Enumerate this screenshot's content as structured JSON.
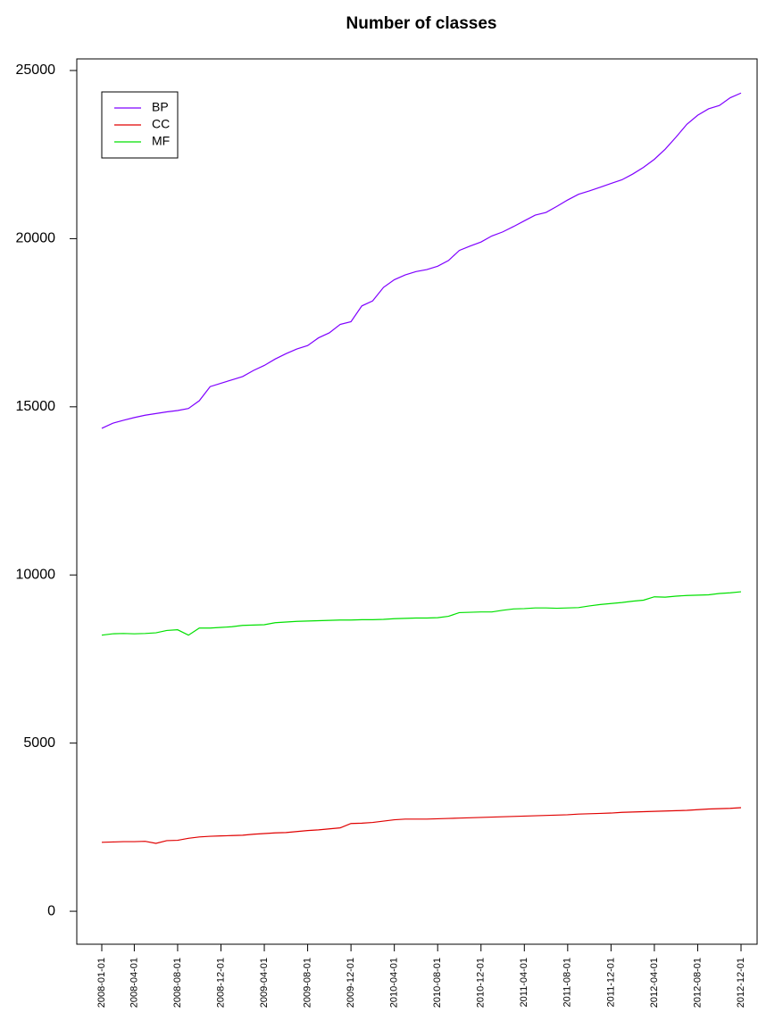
{
  "chart_data": {
    "type": "line",
    "title": "Number of classes",
    "categories": [
      "2008-01-01",
      null,
      null,
      "2008-04-01",
      null,
      null,
      null,
      "2008-08-01",
      null,
      null,
      null,
      "2008-12-01",
      null,
      null,
      null,
      "2009-04-01",
      null,
      null,
      null,
      "2009-08-01",
      null,
      null,
      null,
      "2009-12-01",
      null,
      null,
      null,
      "2010-04-01",
      null,
      null,
      null,
      "2010-08-01",
      null,
      null,
      null,
      "2010-12-01",
      null,
      null,
      null,
      "2011-04-01",
      null,
      null,
      null,
      "2011-08-01",
      null,
      null,
      null,
      "2011-12-01",
      null,
      null,
      null,
      "2012-04-01",
      null,
      null,
      null,
      "2012-08-01",
      null,
      null,
      null,
      "2012-12-01"
    ],
    "series": [
      {
        "name": "BP",
        "color": "#7f00ff",
        "values": [
          14360,
          14510,
          14600,
          14680,
          14750,
          14800,
          14850,
          14890,
          14950,
          15180,
          15600,
          15700,
          15800,
          15900,
          16080,
          16230,
          16420,
          16580,
          16720,
          16820,
          17050,
          17200,
          17450,
          17530,
          18000,
          18150,
          18550,
          18780,
          18920,
          19020,
          19080,
          19180,
          19350,
          19650,
          19780,
          19900,
          20080,
          20200,
          20360,
          20530,
          20700,
          20780,
          20960,
          21150,
          21320,
          21420,
          21530,
          21640,
          21750,
          21920,
          22120,
          22360,
          22660,
          23020,
          23400,
          23670,
          23860,
          23960,
          24190,
          24330
        ]
      },
      {
        "name": "CC",
        "color": "#e00000",
        "values": [
          2050,
          2060,
          2070,
          2070,
          2080,
          2020,
          2100,
          2110,
          2170,
          2210,
          2230,
          2240,
          2250,
          2260,
          2290,
          2310,
          2330,
          2340,
          2370,
          2400,
          2420,
          2450,
          2480,
          2610,
          2620,
          2640,
          2680,
          2720,
          2740,
          2740,
          2740,
          2750,
          2760,
          2770,
          2780,
          2790,
          2800,
          2810,
          2820,
          2830,
          2840,
          2850,
          2860,
          2870,
          2890,
          2900,
          2910,
          2920,
          2940,
          2950,
          2960,
          2970,
          2980,
          2990,
          3000,
          3020,
          3040,
          3050,
          3060,
          3080
        ]
      },
      {
        "name": "MF",
        "color": "#00e000",
        "values": [
          8210,
          8250,
          8260,
          8250,
          8260,
          8280,
          8350,
          8370,
          8210,
          8420,
          8420,
          8440,
          8460,
          8500,
          8510,
          8520,
          8580,
          8600,
          8620,
          8630,
          8640,
          8650,
          8660,
          8660,
          8670,
          8670,
          8680,
          8700,
          8710,
          8720,
          8720,
          8730,
          8770,
          8880,
          8890,
          8900,
          8900,
          8950,
          8990,
          9000,
          9020,
          9020,
          9010,
          9020,
          9030,
          9080,
          9120,
          9150,
          9180,
          9220,
          9250,
          9350,
          9340,
          9370,
          9390,
          9400,
          9410,
          9450,
          9470,
          9500
        ]
      }
    ],
    "ylim": [
      -980,
      25345
    ],
    "yticks": [
      0,
      5000,
      10000,
      15000,
      20000,
      25000
    ],
    "legend": "top-left"
  }
}
